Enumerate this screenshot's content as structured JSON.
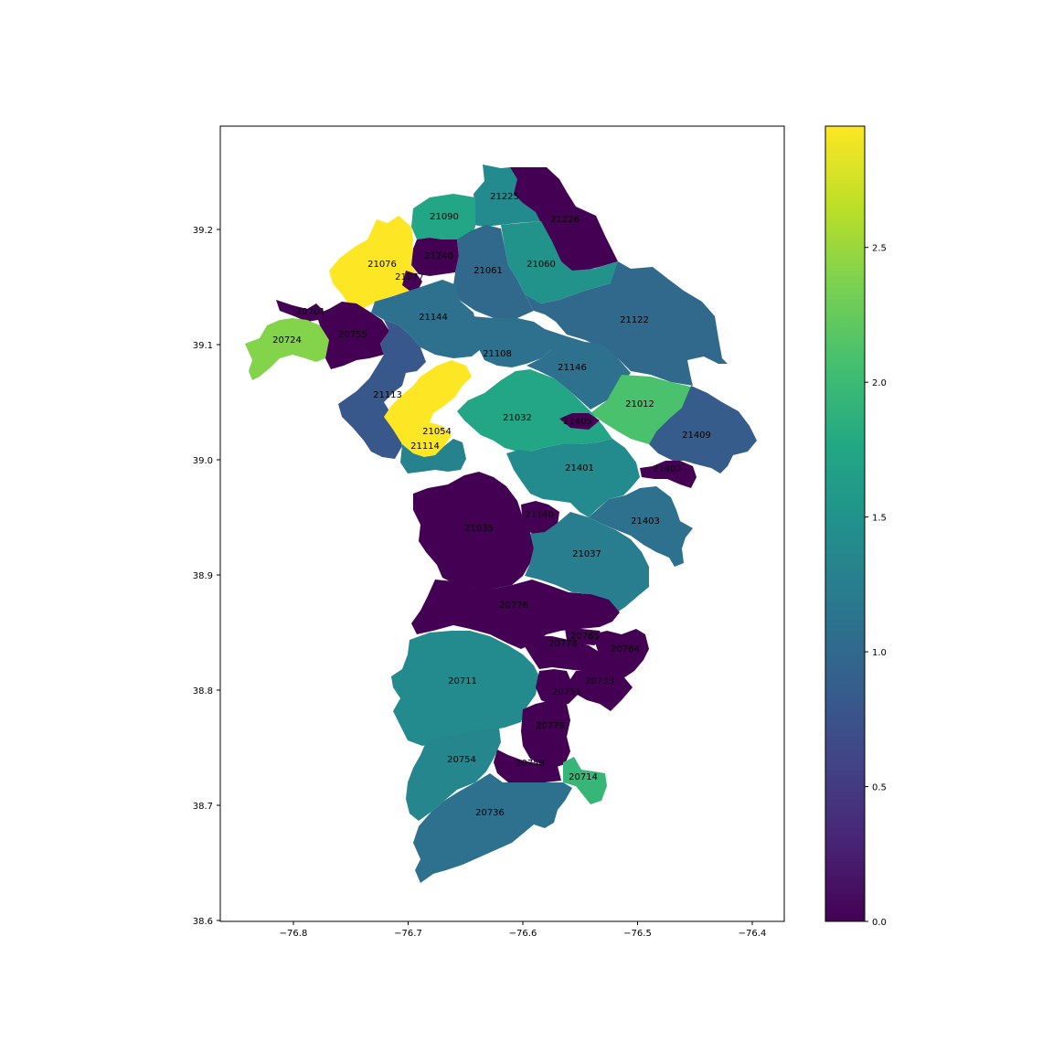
{
  "chart_data": {
    "type": "choropleth",
    "title": "",
    "xlabel": "",
    "ylabel": "",
    "xlim": [
      -76.86,
      -76.37
    ],
    "ylim": [
      38.6,
      39.29
    ],
    "x_ticks": [
      "−76.8",
      "−76.7",
      "−76.6",
      "−76.5",
      "−76.4"
    ],
    "y_ticks": [
      "38.6",
      "38.7",
      "38.8",
      "38.9",
      "39.0",
      "39.1",
      "39.2"
    ],
    "colorbar": {
      "colormap": "viridis",
      "range": [
        0.0,
        2.95
      ],
      "ticks": [
        "0.0",
        "0.5",
        "1.0",
        "1.5",
        "2.0",
        "2.5"
      ]
    },
    "regions": [
      {
        "zip": "21225",
        "value": 1.4
      },
      {
        "zip": "21226",
        "value": 0.0
      },
      {
        "zip": "21090",
        "value": 1.75
      },
      {
        "zip": "21240",
        "value": 0.0
      },
      {
        "zip": "21076",
        "value": 2.95
      },
      {
        "zip": "21077",
        "value": 0.0
      },
      {
        "zip": "21061",
        "value": 1.0
      },
      {
        "zip": "21060",
        "value": 1.5
      },
      {
        "zip": "20701",
        "value": 0.0
      },
      {
        "zip": "21144",
        "value": 1.1
      },
      {
        "zip": "21122",
        "value": 1.0
      },
      {
        "zip": "20724",
        "value": 2.4
      },
      {
        "zip": "20755",
        "value": 0.0
      },
      {
        "zip": "21108",
        "value": 1.1
      },
      {
        "zip": "21146",
        "value": 1.1
      },
      {
        "zip": "21113",
        "value": 0.8
      },
      {
        "zip": "21012",
        "value": 2.1
      },
      {
        "zip": "21032",
        "value": 1.75
      },
      {
        "zip": "21405",
        "value": 0.0
      },
      {
        "zip": "21054",
        "value": 2.95
      },
      {
        "zip": "21114",
        "value": 1.3
      },
      {
        "zip": "21409",
        "value": 0.85
      },
      {
        "zip": "21401",
        "value": 1.4
      },
      {
        "zip": "21402",
        "value": 0.0
      },
      {
        "zip": "21140",
        "value": 0.0
      },
      {
        "zip": "21035",
        "value": 0.0
      },
      {
        "zip": "21403",
        "value": 1.1
      },
      {
        "zip": "21037",
        "value": 1.25
      },
      {
        "zip": "20776",
        "value": 0.0
      },
      {
        "zip": "20765",
        "value": 0.0
      },
      {
        "zip": "20778",
        "value": 0.0
      },
      {
        "zip": "20764",
        "value": 0.0
      },
      {
        "zip": "20711",
        "value": 1.4
      },
      {
        "zip": "20733",
        "value": 0.0
      },
      {
        "zip": "20751",
        "value": 0.0
      },
      {
        "zip": "20779",
        "value": 0.0
      },
      {
        "zip": "20754",
        "value": 1.35
      },
      {
        "zip": "20758",
        "value": 0.0
      },
      {
        "zip": "20714",
        "value": 1.95
      },
      {
        "zip": "20736",
        "value": 1.1
      }
    ]
  }
}
